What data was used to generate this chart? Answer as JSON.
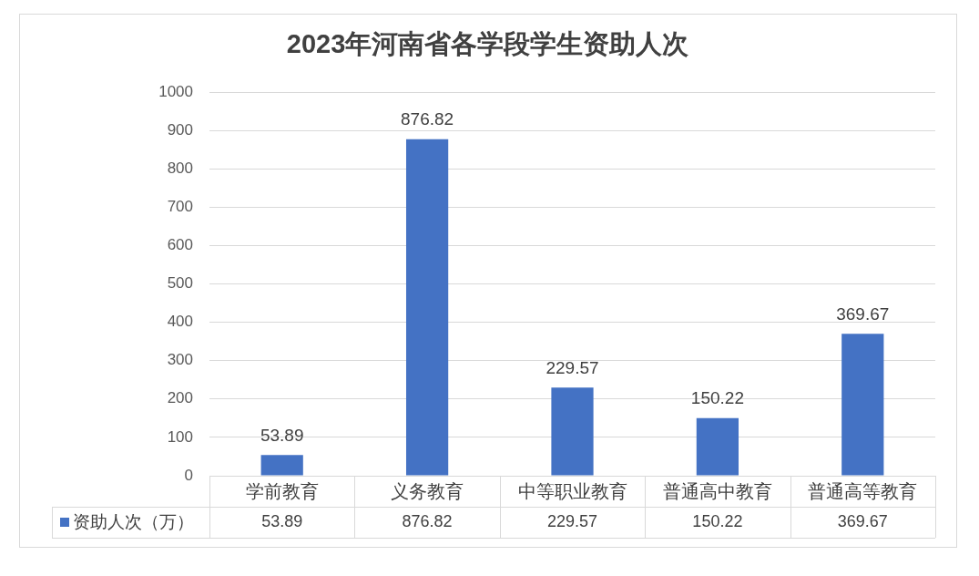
{
  "chart_data": {
    "type": "bar",
    "title": "2023年河南省各学段学生资助人次",
    "categories": [
      "学前教育",
      "义务教育",
      "中等职业教育",
      "普通高中教育",
      "普通高等教育"
    ],
    "series": [
      {
        "name": "资助人次（万）",
        "color": "#4472c4",
        "values": [
          53.89,
          876.82,
          229.57,
          150.22,
          369.67
        ]
      }
    ],
    "ylim": [
      0,
      1000
    ],
    "yticks": [
      0,
      100,
      200,
      300,
      400,
      500,
      600,
      700,
      800,
      900,
      1000
    ],
    "grid": "y",
    "legend": "bottom left",
    "data_labels": true,
    "annotations": [
      {
        "text": "53.89",
        "x": "学前教育",
        "y": 53.89
      },
      {
        "text": "876.82",
        "x": "义务教育",
        "y": 876.82
      },
      {
        "text": "229.57",
        "x": "中等职业教育",
        "y": 229.57
      },
      {
        "text": "150.22",
        "x": "普通高中教育",
        "y": 150.22
      },
      {
        "text": "369.67",
        "x": "普通高等教育",
        "y": 369.67
      }
    ]
  }
}
